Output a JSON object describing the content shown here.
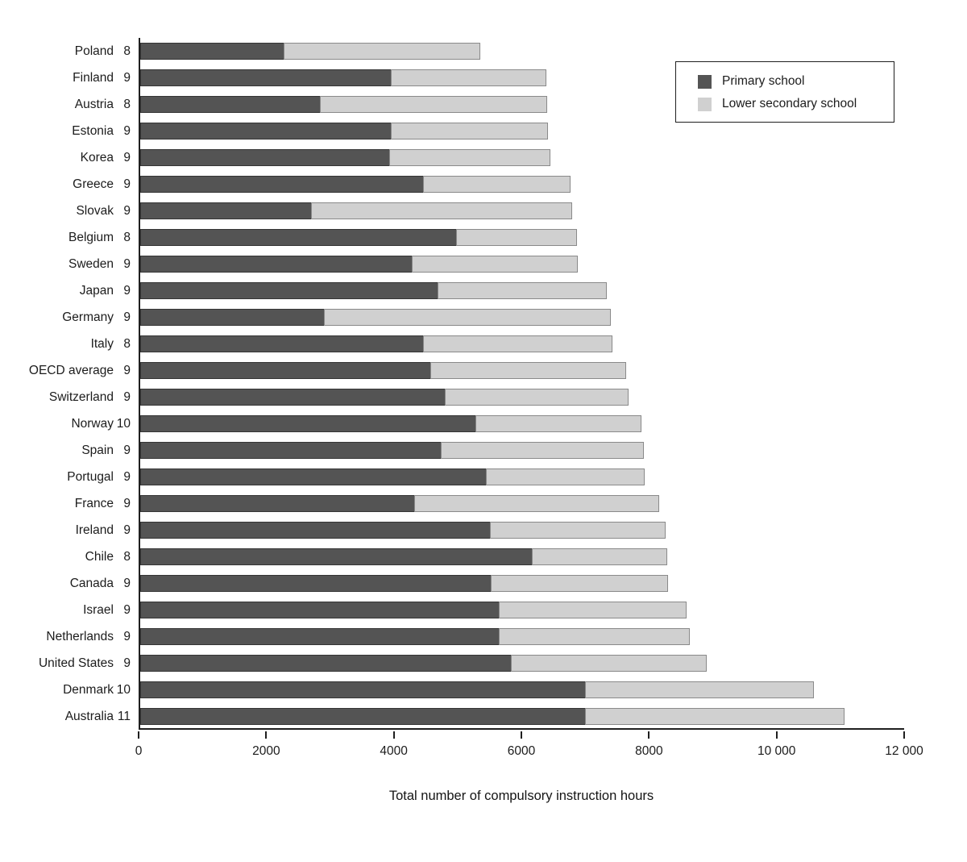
{
  "chart_data": {
    "type": "bar",
    "orientation": "horizontal",
    "stacked": true,
    "title": "",
    "xlabel": "Total number of compulsory instruction hours",
    "ylabel": "",
    "xlim": [
      0,
      12000
    ],
    "grid": false,
    "x_ticks": [
      {
        "value": 0,
        "label": "0"
      },
      {
        "value": 2000,
        "label": "2000"
      },
      {
        "value": 4000,
        "label": "4000"
      },
      {
        "value": 6000,
        "label": "6000"
      },
      {
        "value": 8000,
        "label": "8000"
      },
      {
        "value": 10000,
        "label": "10 000"
      },
      {
        "value": 12000,
        "label": "12 000"
      }
    ],
    "legend": {
      "position": "upper-right",
      "entries": [
        {
          "name": "Primary school",
          "color": "#545454"
        },
        {
          "name": "Lower secondary school",
          "color": "#d0d0d0"
        }
      ]
    },
    "countries": [
      {
        "name": "Poland",
        "years": "8",
        "primary": 2270,
        "lower_secondary": 3080,
        "total": 5350
      },
      {
        "name": "Finland",
        "years": "9",
        "primary": 3950,
        "lower_secondary": 2440,
        "total": 6390
      },
      {
        "name": "Austria",
        "years": "8",
        "primary": 2830,
        "lower_secondary": 3580,
        "total": 6410
      },
      {
        "name": "Estonia",
        "years": "9",
        "primary": 3950,
        "lower_secondary": 2470,
        "total": 6420
      },
      {
        "name": "Korea",
        "years": "9",
        "primary": 3920,
        "lower_secondary": 2540,
        "total": 6460
      },
      {
        "name": "Greece",
        "years": "9",
        "primary": 4450,
        "lower_secondary": 2320,
        "total": 6770
      },
      {
        "name": "Slovak",
        "years": "9",
        "primary": 2700,
        "lower_secondary": 4100,
        "total": 6800
      },
      {
        "name": "Belgium",
        "years": "8",
        "primary": 4970,
        "lower_secondary": 1900,
        "total": 6870
      },
      {
        "name": "Sweden",
        "years": "9",
        "primary": 4280,
        "lower_secondary": 2610,
        "total": 6890
      },
      {
        "name": "Japan",
        "years": "9",
        "primary": 4680,
        "lower_secondary": 2660,
        "total": 7340
      },
      {
        "name": "Germany",
        "years": "9",
        "primary": 2900,
        "lower_secondary": 4500,
        "total": 7400
      },
      {
        "name": "Italy",
        "years": "8",
        "primary": 4450,
        "lower_secondary": 2980,
        "total": 7430
      },
      {
        "name": "OECD average",
        "years": "9",
        "primary": 4570,
        "lower_secondary": 3070,
        "total": 7640
      },
      {
        "name": "Switzerland",
        "years": "9",
        "primary": 4800,
        "lower_secondary": 2890,
        "total": 7690
      },
      {
        "name": "Norway",
        "years": "10",
        "primary": 5280,
        "lower_secondary": 2610,
        "total": 7890
      },
      {
        "name": "Spain",
        "years": "9",
        "primary": 4740,
        "lower_secondary": 3190,
        "total": 7930
      },
      {
        "name": "Portugal",
        "years": "9",
        "primary": 5440,
        "lower_secondary": 2500,
        "total": 7940
      },
      {
        "name": "France",
        "years": "9",
        "primary": 4320,
        "lower_secondary": 3840,
        "total": 8160
      },
      {
        "name": "Ireland",
        "years": "9",
        "primary": 5500,
        "lower_secondary": 2770,
        "total": 8270
      },
      {
        "name": "Chile",
        "years": "8",
        "primary": 6160,
        "lower_secondary": 2130,
        "total": 8290
      },
      {
        "name": "Canada",
        "years": "9",
        "primary": 5520,
        "lower_secondary": 2780,
        "total": 8300
      },
      {
        "name": "Israel",
        "years": "9",
        "primary": 5640,
        "lower_secondary": 2960,
        "total": 8600
      },
      {
        "name": "Netherlands",
        "years": "9",
        "primary": 5640,
        "lower_secondary": 3010,
        "total": 8650
      },
      {
        "name": "United States",
        "years": "9",
        "primary": 5830,
        "lower_secondary": 3080,
        "total": 8910
      },
      {
        "name": "Denmark",
        "years": "10",
        "primary": 7000,
        "lower_secondary": 3600,
        "total": 10600
      },
      {
        "name": "Australia",
        "years": "11",
        "primary": 7000,
        "lower_secondary": 4080,
        "total": 11080
      }
    ]
  }
}
